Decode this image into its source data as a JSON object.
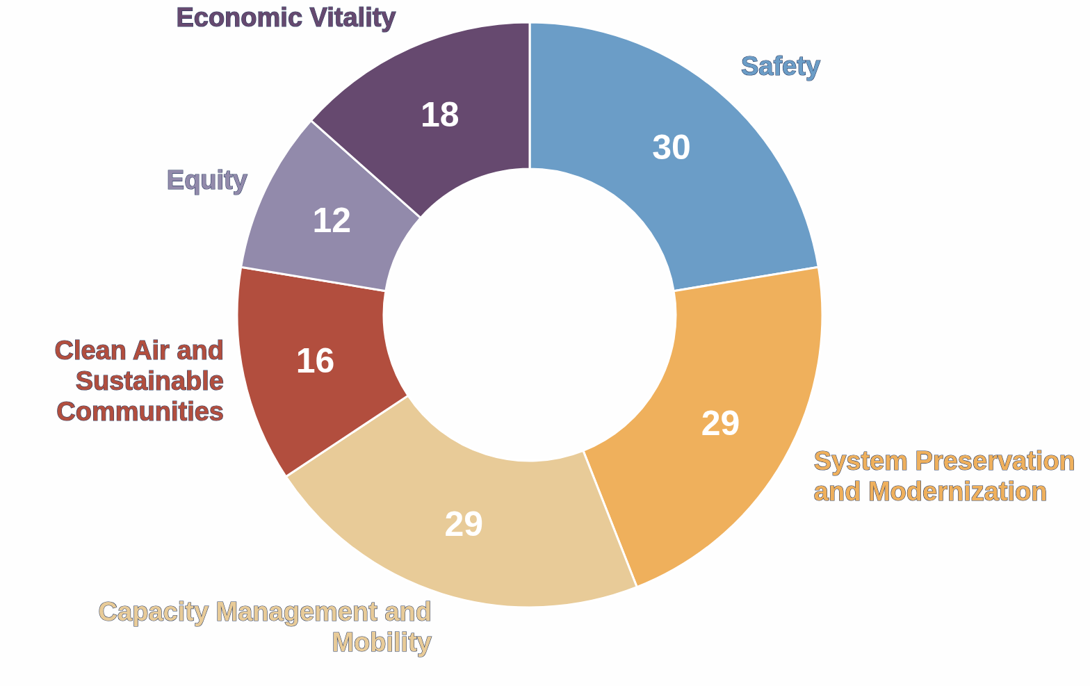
{
  "chart_data": {
    "type": "donut",
    "categories": [
      "Safety",
      "System Preservation and Modernization",
      "Capacity Management and Mobility",
      "Clean Air and Sustainable Communities",
      "Equity",
      "Economic Vitality"
    ],
    "values": [
      30,
      29,
      29,
      16,
      12,
      18
    ],
    "colors": [
      "#6b9dc7",
      "#efb05c",
      "#e8cb98",
      "#b24e3e",
      "#928aab",
      "#66496f"
    ],
    "data_labels": true
  }
}
